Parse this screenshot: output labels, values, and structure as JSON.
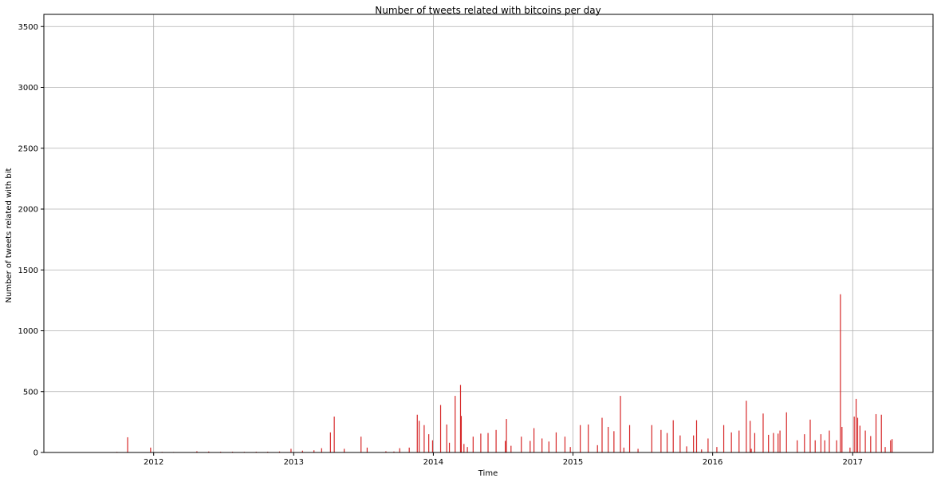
{
  "chart_data": {
    "type": "bar",
    "title": "Number of tweets related with bitcoins per day",
    "xlabel": "Time",
    "ylabel": "Number of tweets related with bit",
    "ylim": [
      0,
      3600
    ],
    "xlim": [
      "2011-03-20",
      "2017-07-30"
    ],
    "grid": true,
    "bar_color": "#d62728",
    "x_ticks": [
      "2012",
      "2013",
      "2014",
      "2015",
      "2016",
      "2017"
    ],
    "x_tick_dates": [
      "2012-01-01",
      "2013-01-01",
      "2014-01-01",
      "2015-01-01",
      "2016-01-01",
      "2017-01-01"
    ],
    "y_ticks": [
      0,
      500,
      1000,
      1500,
      2000,
      2500,
      3000,
      3500
    ],
    "series": [
      {
        "x": [
          "2011-09-27",
          "2011-10-25",
          "2011-12-24",
          "2012-01-23",
          "2012-02-22",
          "2012-04-23",
          "2012-05-24",
          "2012-06-24",
          "2012-07-25",
          "2012-08-25",
          "2012-09-25",
          "2012-10-25",
          "2012-11-25",
          "2012-12-25",
          "2013-01-24",
          "2013-02-23",
          "2013-03-15",
          "2013-04-07",
          "2013-04-17",
          "2013-05-13",
          "2013-06-26",
          "2013-07-12",
          "2013-08-30",
          "2013-09-20",
          "2013-10-05",
          "2013-10-30",
          "2013-11-20",
          "2013-11-25",
          "2013-12-08",
          "2013-12-20",
          "2013-12-30",
          "2014-01-20",
          "2014-02-05",
          "2014-02-12",
          "2014-02-27",
          "2014-03-13",
          "2014-03-15",
          "2014-03-22",
          "2014-03-31",
          "2014-04-15",
          "2014-05-05",
          "2014-05-24",
          "2014-06-14",
          "2014-07-08",
          "2014-07-11",
          "2014-07-23",
          "2014-08-19",
          "2014-09-11",
          "2014-09-21",
          "2014-10-12",
          "2014-10-30",
          "2014-11-18",
          "2014-12-11",
          "2014-12-25",
          "2015-01-20",
          "2015-02-10",
          "2015-03-06",
          "2015-03-18",
          "2015-04-03",
          "2015-04-18",
          "2015-05-05",
          "2015-05-14",
          "2015-05-29",
          "2015-06-20",
          "2015-07-26",
          "2015-08-19",
          "2015-09-04",
          "2015-09-20",
          "2015-10-08",
          "2015-10-25",
          "2015-11-12",
          "2015-11-20",
          "2015-12-03",
          "2015-12-20",
          "2016-01-12",
          "2016-01-30",
          "2016-02-19",
          "2016-03-10",
          "2016-03-29",
          "2016-04-08",
          "2016-04-11",
          "2016-04-20",
          "2016-05-12",
          "2016-05-26",
          "2016-06-08",
          "2016-06-20",
          "2016-06-25",
          "2016-07-12",
          "2016-08-09",
          "2016-08-28",
          "2016-09-12",
          "2016-09-25",
          "2016-10-10",
          "2016-10-20",
          "2016-11-01",
          "2016-11-20",
          "2016-11-30",
          "2016-12-04",
          "2016-12-25",
          "2017-01-05",
          "2017-01-10",
          "2017-01-14",
          "2017-01-20",
          "2017-02-03",
          "2017-02-17",
          "2017-03-03",
          "2017-03-17",
          "2017-03-27",
          "2017-04-10",
          "2017-04-14"
        ],
        "values": [
          5,
          125,
          40,
          5,
          4,
          10,
          8,
          6,
          6,
          5,
          6,
          6,
          8,
          30,
          15,
          18,
          35,
          165,
          295,
          30,
          130,
          40,
          10,
          8,
          35,
          40,
          310,
          260,
          225,
          150,
          100,
          390,
          230,
          80,
          465,
          555,
          300,
          70,
          45,
          130,
          155,
          160,
          185,
          95,
          275,
          55,
          130,
          95,
          200,
          115,
          90,
          165,
          130,
          45,
          225,
          230,
          60,
          285,
          210,
          175,
          465,
          40,
          225,
          30,
          225,
          185,
          160,
          265,
          140,
          50,
          140,
          265,
          25,
          115,
          45,
          225,
          165,
          180,
          425,
          260,
          30,
          160,
          320,
          145,
          160,
          155,
          180,
          330,
          100,
          150,
          270,
          100,
          150,
          100,
          180,
          100,
          1300,
          210,
          40,
          295,
          440,
          285,
          220,
          180,
          135,
          315,
          310,
          45,
          100,
          110
        ]
      }
    ]
  }
}
